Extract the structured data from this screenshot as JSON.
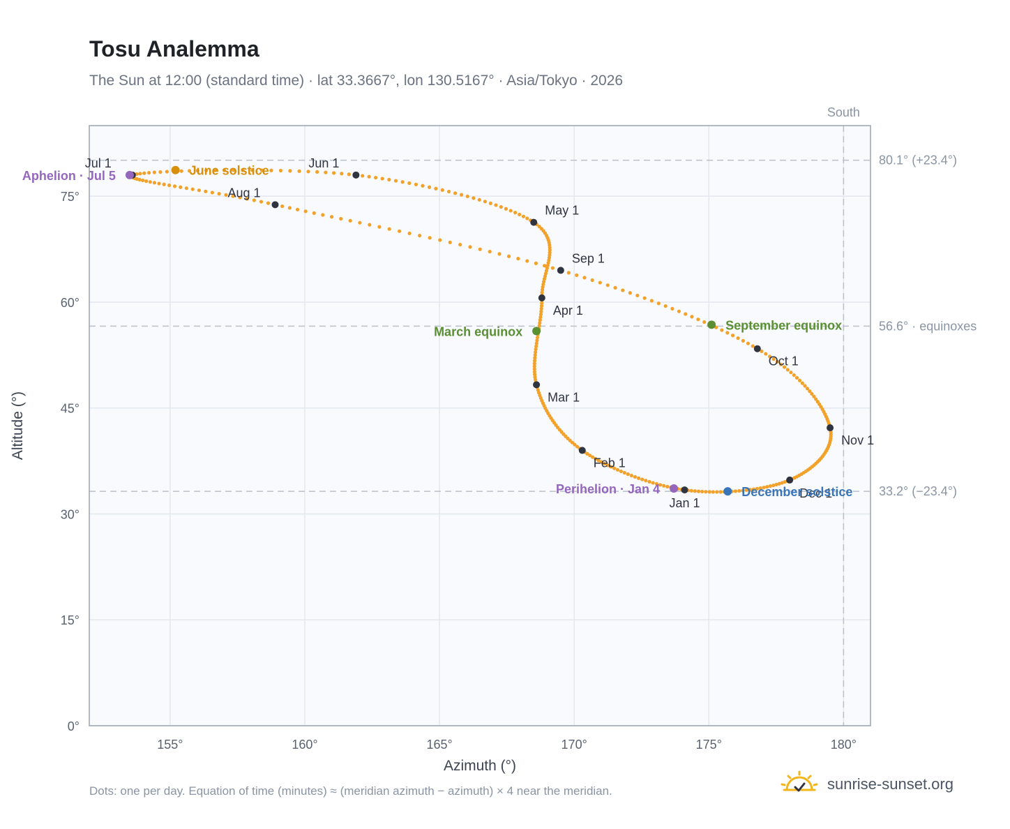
{
  "title": "Tosu Analemma",
  "subtitle": "The Sun at 12:00 (standard time) · lat 33.3667°, lon 130.5167° · Asia/Tokyo · 2026",
  "footnote": "Dots: one per day. Equation of time (minutes) ≈ (meridian azimuth − azimuth) × 4 near the meridian.",
  "brand": {
    "name": "sunrise-sunset.org",
    "icon": "sun-check-icon"
  },
  "colors": {
    "analemma": "#f2a22a",
    "month_marker": "#2f3440",
    "solstice_june": "#d88f0c",
    "solstice_december": "#3a75b8",
    "equinox": "#5a8f32",
    "apsis": "#9467bd",
    "plot_bg": "#f8fafd",
    "grid": "#e3e8ee",
    "reference_line": "#b9c1cb"
  },
  "chart_data": {
    "type": "scatter",
    "xlabel": "Azimuth (°)",
    "ylabel": "Altitude (°)",
    "xlim": [
      152,
      181
    ],
    "ylim": [
      0,
      85
    ],
    "grid": true,
    "x_ticks": [
      155,
      160,
      165,
      170,
      175,
      180
    ],
    "y_ticks": [
      0,
      15,
      30,
      45,
      60,
      75
    ],
    "x_tick_labels": [
      "155°",
      "160°",
      "165°",
      "170°",
      "175°",
      "180°"
    ],
    "y_tick_labels": [
      "0°",
      "15°",
      "30°",
      "45°",
      "60°",
      "75°"
    ],
    "series": [
      {
        "points_by_month_start": [
          {
            "date": "Jan 1",
            "azimuth": 174.1,
            "altitude": 33.4
          },
          {
            "date": "Feb 1",
            "azimuth": 170.3,
            "altitude": 39.0
          },
          {
            "date": "Mar 1",
            "azimuth": 168.6,
            "altitude": 48.3
          },
          {
            "date": "Apr 1",
            "azimuth": 168.8,
            "altitude": 60.6
          },
          {
            "date": "May 1",
            "azimuth": 168.5,
            "altitude": 71.3
          },
          {
            "date": "Jun 1",
            "azimuth": 161.9,
            "altitude": 78.0
          },
          {
            "date": "Jul 1",
            "azimuth": 153.6,
            "altitude": 78.0
          },
          {
            "date": "Aug 1",
            "azimuth": 158.9,
            "altitude": 73.8
          },
          {
            "date": "Sep 1",
            "azimuth": 169.5,
            "altitude": 64.5
          },
          {
            "date": "Oct 1",
            "azimuth": 176.8,
            "altitude": 53.4
          },
          {
            "date": "Nov 1",
            "azimuth": 179.5,
            "altitude": 42.2
          },
          {
            "date": "Dec 1",
            "azimuth": 178.0,
            "altitude": 34.8
          }
        ],
        "daily_dots": 365
      }
    ],
    "month_labels": [
      {
        "text": "Jan 1",
        "anchor": "below"
      },
      {
        "text": "Feb 1",
        "anchor": "below-right"
      },
      {
        "text": "Mar 1",
        "anchor": "below-right"
      },
      {
        "text": "Apr 1",
        "anchor": "below-right"
      },
      {
        "text": "May 1",
        "anchor": "above-right"
      },
      {
        "text": "Jun 1",
        "anchor": "above-left"
      },
      {
        "text": "Jul 1",
        "anchor": "above-left"
      },
      {
        "text": "Aug 1",
        "anchor": "above-left"
      },
      {
        "text": "Sep 1",
        "anchor": "above-right"
      },
      {
        "text": "Oct 1",
        "anchor": "below-right"
      },
      {
        "text": "Nov 1",
        "anchor": "below-right"
      },
      {
        "text": "Dec 1",
        "anchor": "right"
      }
    ],
    "events": [
      {
        "label": "June solstice",
        "azimuth": 155.2,
        "altitude": 78.7,
        "color_key": "solstice_june",
        "label_side": "right"
      },
      {
        "label": "December solstice",
        "azimuth": 175.7,
        "altitude": 33.2,
        "color_key": "solstice_december",
        "label_side": "right"
      },
      {
        "label": "March equinox",
        "azimuth": 168.6,
        "altitude": 55.9,
        "color_key": "equinox",
        "label_side": "left"
      },
      {
        "label": "September equinox",
        "azimuth": 175.1,
        "altitude": 56.8,
        "color_key": "equinox",
        "label_side": "right"
      },
      {
        "label": "Aphelion · Jul 5",
        "azimuth": 153.5,
        "altitude": 78.0,
        "color_key": "apsis",
        "label_side": "left"
      },
      {
        "label": "Perihelion · Jan 4",
        "azimuth": 173.7,
        "altitude": 33.6,
        "color_key": "apsis",
        "label_side": "left"
      }
    ],
    "reference_lines": [
      {
        "orientation": "horizontal",
        "value": 80.1,
        "label": "80.1° (+23.4°)"
      },
      {
        "orientation": "horizontal",
        "value": 56.6,
        "label": "56.6° · equinoxes"
      },
      {
        "orientation": "horizontal",
        "value": 33.2,
        "label": "33.2° (−23.4°)"
      },
      {
        "orientation": "vertical",
        "value": 180,
        "label": "South"
      }
    ]
  }
}
